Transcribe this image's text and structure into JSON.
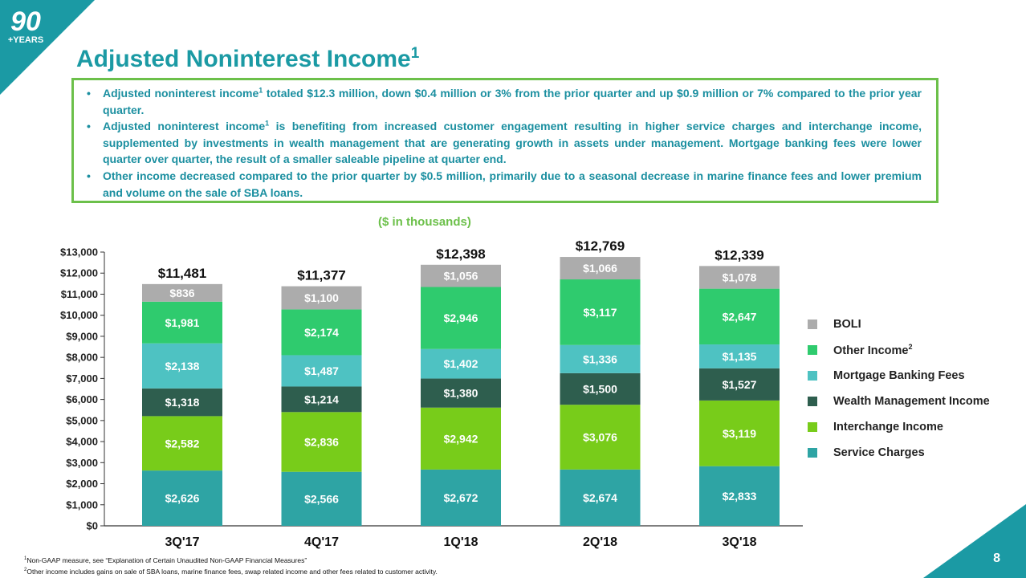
{
  "logo": {
    "number": "90",
    "label": "+YEARS"
  },
  "header": {
    "title": "Adjusted Noninterest Income",
    "title_sup": "1"
  },
  "bullets": [
    [
      "Adjusted noninterest income",
      "1",
      " totaled $12.3 million, down $0.4 million or 3% from the prior quarter and up $0.9 million or 7% compared to the prior year quarter."
    ],
    [
      "Adjusted noninterest income",
      "1",
      " is benefiting from increased customer engagement resulting in higher service charges and interchange income, supplemented by investments in wealth management that are generating growth in assets under management. Mortgage banking fees were lower quarter over quarter, the result of a smaller saleable pipeline at quarter end."
    ],
    [
      "Other income decreased compared to the prior quarter by $0.5 million, primarily due to a seasonal decrease in marine finance fees and lower premium and volume on the sale of SBA loans.",
      "",
      ""
    ]
  ],
  "units_label": "($ in thousands)",
  "chart_data": {
    "type": "bar",
    "stacked": true,
    "categories": [
      "3Q'17",
      "4Q'17",
      "1Q'18",
      "2Q'18",
      "3Q'18"
    ],
    "series": [
      {
        "name": "Service Charges",
        "color": "#2ea4a4",
        "values": [
          2626,
          2566,
          2672,
          2674,
          2833
        ],
        "labels": [
          "$2,626",
          "$2,566",
          "$2,672",
          "$2,674",
          "$2,833"
        ]
      },
      {
        "name": "Interchange Income",
        "color": "#78cc1a",
        "values": [
          2582,
          2836,
          2942,
          3076,
          3119
        ],
        "labels": [
          "$2,582",
          "$2,836",
          "$2,942",
          "$3,076",
          "$3,119"
        ]
      },
      {
        "name": "Wealth Management Income",
        "color": "#2e5e4e",
        "values": [
          1318,
          1214,
          1380,
          1500,
          1527
        ],
        "labels": [
          "$1,318",
          "$1,214",
          "$1,380",
          "$1,500",
          "$1,527"
        ]
      },
      {
        "name": "Mortgage Banking Fees",
        "color": "#4ec2c2",
        "values": [
          2138,
          1487,
          1402,
          1336,
          1135
        ],
        "labels": [
          "$2,138",
          "$1,487",
          "$1,402",
          "$1,336",
          "$1,135"
        ]
      },
      {
        "name": "Other Income",
        "name_sup": "2",
        "color": "#2fcb6e",
        "values": [
          1981,
          2174,
          2946,
          3117,
          2647
        ],
        "labels": [
          "$1,981",
          "$2,174",
          "$2,946",
          "$3,117",
          "$2,647"
        ]
      },
      {
        "name": "BOLI",
        "color": "#acacac",
        "values": [
          836,
          1100,
          1056,
          1066,
          1078
        ],
        "labels": [
          "$836",
          "$1,100",
          "$1,056",
          "$1,066",
          "$1,078"
        ]
      }
    ],
    "totals": [
      11481,
      11377,
      12398,
      12769,
      12339
    ],
    "total_labels": [
      "$11,481",
      "$11,377",
      "$12,398",
      "$12,769",
      "$12,339"
    ],
    "ylim": [
      0,
      13000
    ],
    "yticks": [
      0,
      1000,
      2000,
      3000,
      4000,
      5000,
      6000,
      7000,
      8000,
      9000,
      10000,
      11000,
      12000,
      13000
    ],
    "ytick_labels": [
      "$0",
      "$1,000",
      "$2,000",
      "$3,000",
      "$4,000",
      "$5,000",
      "$6,000",
      "$7,000",
      "$8,000",
      "$9,000",
      "$10,000",
      "$11,000",
      "$12,000",
      "$13,000"
    ],
    "legend_position": "right",
    "grid": false
  },
  "footnotes": [
    {
      "sup": "1",
      "text": "Non-GAAP measure, see “Explanation of Certain Unaudited Non-GAAP Financial Measures”"
    },
    {
      "sup": "2",
      "text": "Other income includes gains on sale of SBA loans, marine finance fees, swap related income and other fees related to customer activity."
    }
  ],
  "page_number": "8",
  "colors": {
    "brand_teal": "#1b9aa4",
    "brand_green": "#6cc04a"
  }
}
